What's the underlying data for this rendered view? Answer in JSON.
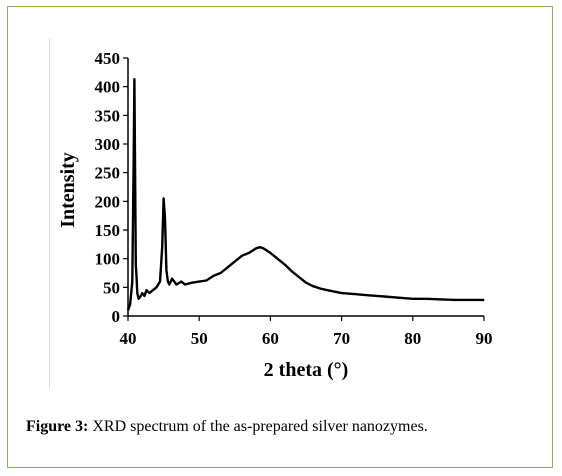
{
  "caption": {
    "label": "Figure 3:",
    "text": " XRD spectrum of the as-prepared silver nanozymes."
  },
  "chart_data": {
    "type": "line",
    "title": "",
    "xlabel": "2 theta (°)",
    "ylabel": "Intensity",
    "xlim": [
      40,
      90
    ],
    "ylim": [
      0,
      450
    ],
    "xticks": [
      40,
      50,
      60,
      70,
      80,
      90
    ],
    "yticks": [
      0,
      50,
      100,
      150,
      200,
      250,
      300,
      350,
      400,
      450
    ],
    "grid": false,
    "legend": "none",
    "line_color": "#000000",
    "series": [
      {
        "x": [
          40.0,
          40.3,
          40.6,
          40.8,
          40.9,
          41.0,
          41.1,
          41.2,
          41.3,
          41.5,
          41.8,
          42.0,
          42.3,
          42.6,
          43.0,
          43.5,
          44.0,
          44.5,
          44.8,
          45.0,
          45.2,
          45.4,
          45.6,
          45.8,
          46.2,
          46.8,
          47.5,
          48.0,
          49.0,
          50.0,
          51.0,
          52.0,
          53.0,
          54.0,
          55.0,
          56.0,
          57.0,
          58.0,
          58.5,
          59.0,
          60.0,
          61.0,
          62.0,
          63.0,
          64.0,
          65.0,
          66.0,
          67.0,
          68.0,
          70.0,
          72.0,
          74.0,
          76.0,
          78.0,
          80.0,
          82.0,
          84.0,
          86.0,
          88.0,
          90.0
        ],
        "y": [
          10,
          20,
          60,
          280,
          413,
          250,
          90,
          70,
          40,
          30,
          35,
          40,
          35,
          45,
          40,
          45,
          50,
          60,
          120,
          205,
          170,
          80,
          60,
          55,
          65,
          55,
          60,
          55,
          58,
          60,
          62,
          70,
          75,
          85,
          95,
          105,
          110,
          118,
          120,
          118,
          110,
          100,
          90,
          78,
          68,
          58,
          52,
          48,
          45,
          40,
          38,
          36,
          34,
          32,
          30,
          30,
          29,
          28,
          28,
          28
        ]
      }
    ]
  }
}
